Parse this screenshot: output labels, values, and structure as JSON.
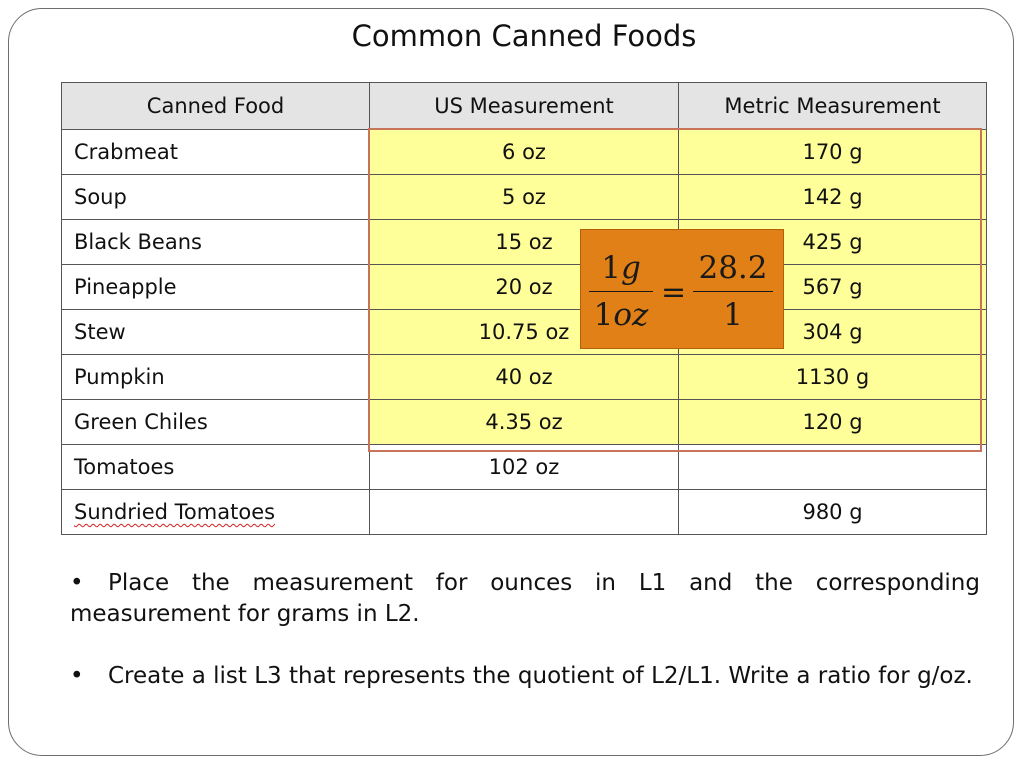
{
  "title": "Common Canned Foods",
  "table": {
    "headers": [
      "Canned Food",
      "US Measurement",
      "Metric Measurement"
    ],
    "rows": [
      {
        "food": "Crabmeat",
        "us": "6 oz",
        "metric": "170 g"
      },
      {
        "food": "Soup",
        "us": "5 oz",
        "metric": "142 g"
      },
      {
        "food": "Black Beans",
        "us": "15 oz",
        "metric": "425 g"
      },
      {
        "food": "Pineapple",
        "us": "20 oz",
        "metric": "567 g"
      },
      {
        "food": "Stew",
        "us": "10.75 oz",
        "metric": "304 g"
      },
      {
        "food": "Pumpkin",
        "us": "40 oz",
        "metric": "1130 g"
      },
      {
        "food": "Green Chiles",
        "us": "4.35 oz",
        "metric": "120 g"
      },
      {
        "food": "Tomatoes",
        "us": "102 oz",
        "metric": ""
      },
      {
        "food": "Sundried Tomatoes",
        "us": "",
        "metric": "980 g"
      }
    ],
    "highlight_color": "#ffff99"
  },
  "ratio": {
    "left_numerator_digit": "1",
    "left_numerator_unit": "g",
    "left_denominator_digit": "1",
    "left_denominator_unit": "oz",
    "equals": "=",
    "right_numerator": "28.2",
    "right_denominator": "1",
    "box_color": "#e08016"
  },
  "bullets": [
    {
      "marker": "•",
      "text": "Place the measurement for ounces in L1 and the corresponding measurement for grams in L2."
    },
    {
      "marker": "•",
      "text": "Create a list L3 that represents the quotient of L2/L1.  Write a ratio for g/oz."
    }
  ]
}
